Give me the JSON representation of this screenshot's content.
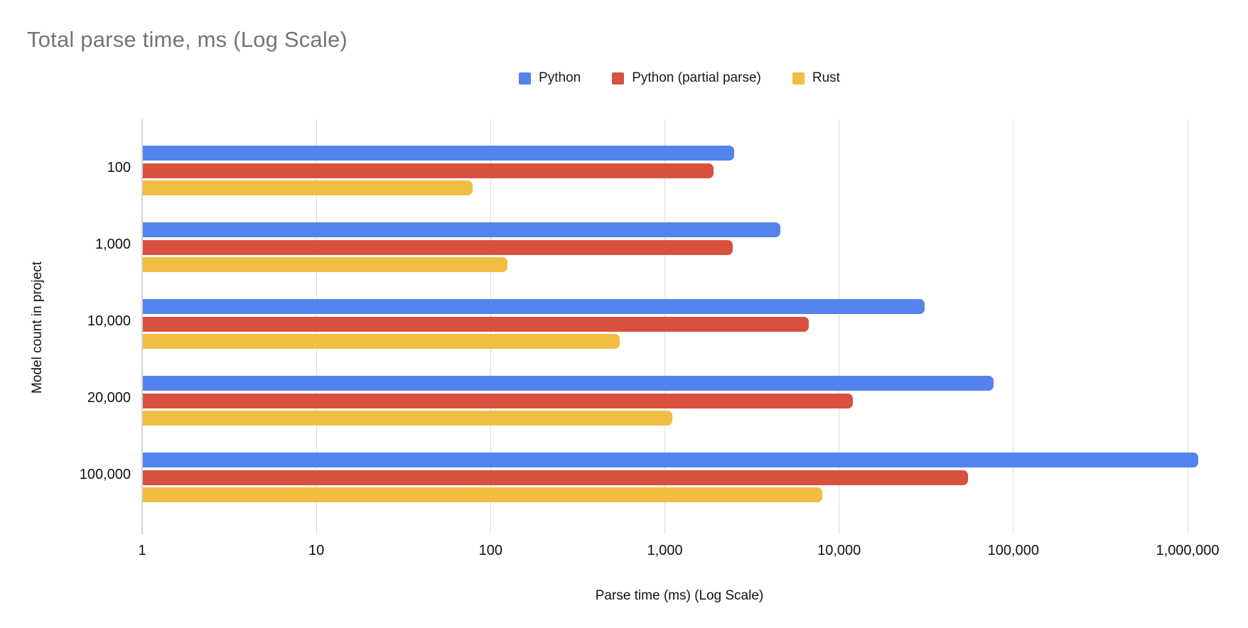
{
  "title": "Total parse time, ms (Log Scale)",
  "colors": {
    "background": "#ffffff",
    "title_text": "#757575",
    "axis_text": "#111111",
    "gridline": "#dadce0",
    "axis_line": "#d2d2d2"
  },
  "chart_data": {
    "type": "bar",
    "orientation": "horizontal",
    "x_scale": "log",
    "title": "Total parse time, ms (Log Scale)",
    "xlabel": "Parse time (ms) (Log Scale)",
    "ylabel": "Model count in project",
    "categories": [
      "100",
      "1,000",
      "10,000",
      "20,000",
      "100,000"
    ],
    "series": [
      {
        "name": "Python",
        "color": "#5383EC",
        "values": [
          2500,
          4600,
          31000,
          77000,
          1150000
        ]
      },
      {
        "name": "Python (partial parse)",
        "color": "#D85140",
        "values": [
          1900,
          2450,
          6700,
          12000,
          55000
        ]
      },
      {
        "name": "Rust",
        "color": "#F1BE42",
        "values": [
          79,
          125,
          550,
          1100,
          8000
        ]
      }
    ],
    "x_ticks": [
      {
        "value": 1,
        "label": "1"
      },
      {
        "value": 10,
        "label": "10"
      },
      {
        "value": 100,
        "label": "100"
      },
      {
        "value": 1000,
        "label": "1,000"
      },
      {
        "value": 10000,
        "label": "10,000"
      },
      {
        "value": 100000,
        "label": "100,000"
      },
      {
        "value": 1000000,
        "label": "1,000,000"
      }
    ],
    "xlim": [
      1,
      1000000
    ],
    "grid": true,
    "legend_position": "top"
  }
}
